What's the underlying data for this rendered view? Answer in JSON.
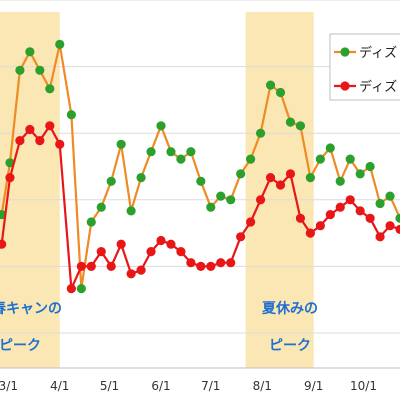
{
  "chart_data": {
    "type": "line",
    "grid": "horizontal",
    "legend_position": "top-right",
    "ylim": [
      0,
      100
    ],
    "x_ticks": [
      "3/1",
      "4/1",
      "5/1",
      "6/1",
      "7/1",
      "8/1",
      "9/1",
      "10/1"
    ],
    "x_tick_positions": [
      0,
      31,
      61,
      92,
      122,
      153,
      184,
      214
    ],
    "xlim": [
      -5,
      236
    ],
    "highlight_ranges": [
      [
        -5,
        31
      ],
      [
        143,
        184
      ]
    ],
    "annotations": [
      {
        "lines": [
          "＆春キャンの",
          "ピーク"
        ]
      },
      {
        "lines": [
          "夏休みの",
          "ピーク"
        ]
      }
    ],
    "series": [
      {
        "name": "ディズ",
        "color": "#f08a24",
        "marker_color": "#2ca02c",
        "x": [
          -4,
          1,
          7,
          13,
          19,
          25,
          31,
          38,
          44,
          50,
          56,
          62,
          68,
          74,
          80,
          86,
          92,
          98,
          104,
          110,
          116,
          122,
          128,
          134,
          140,
          146,
          152,
          158,
          164,
          170,
          176,
          182,
          188,
          194,
          200,
          206,
          212,
          218,
          224,
          230,
          236
        ],
        "values": [
          42,
          56,
          81,
          86,
          81,
          76,
          88,
          69,
          22,
          40,
          44,
          51,
          61,
          43,
          52,
          59,
          66,
          59,
          57,
          59,
          51,
          44,
          47,
          46,
          53,
          57,
          64,
          77,
          75,
          67,
          66,
          52,
          57,
          60,
          51,
          57,
          53,
          55,
          45,
          47,
          41
        ]
      },
      {
        "name": "ディズ",
        "color": "#e81616",
        "marker_color": "#e81616",
        "x": [
          -4,
          1,
          7,
          13,
          19,
          25,
          31,
          38,
          44,
          50,
          56,
          62,
          68,
          74,
          80,
          86,
          92,
          98,
          104,
          110,
          116,
          122,
          128,
          134,
          140,
          146,
          152,
          158,
          164,
          170,
          176,
          182,
          188,
          194,
          200,
          206,
          212,
          218,
          224,
          230,
          236
        ],
        "values": [
          34,
          52,
          62,
          65,
          62,
          66,
          61,
          22,
          28,
          28,
          32,
          28,
          34,
          26,
          27,
          32,
          35,
          34,
          32,
          29,
          28,
          28,
          29,
          29,
          36,
          40,
          46,
          52,
          50,
          53,
          41,
          37,
          39,
          42,
          44,
          46,
          43,
          41,
          36,
          39,
          38
        ]
      }
    ]
  }
}
